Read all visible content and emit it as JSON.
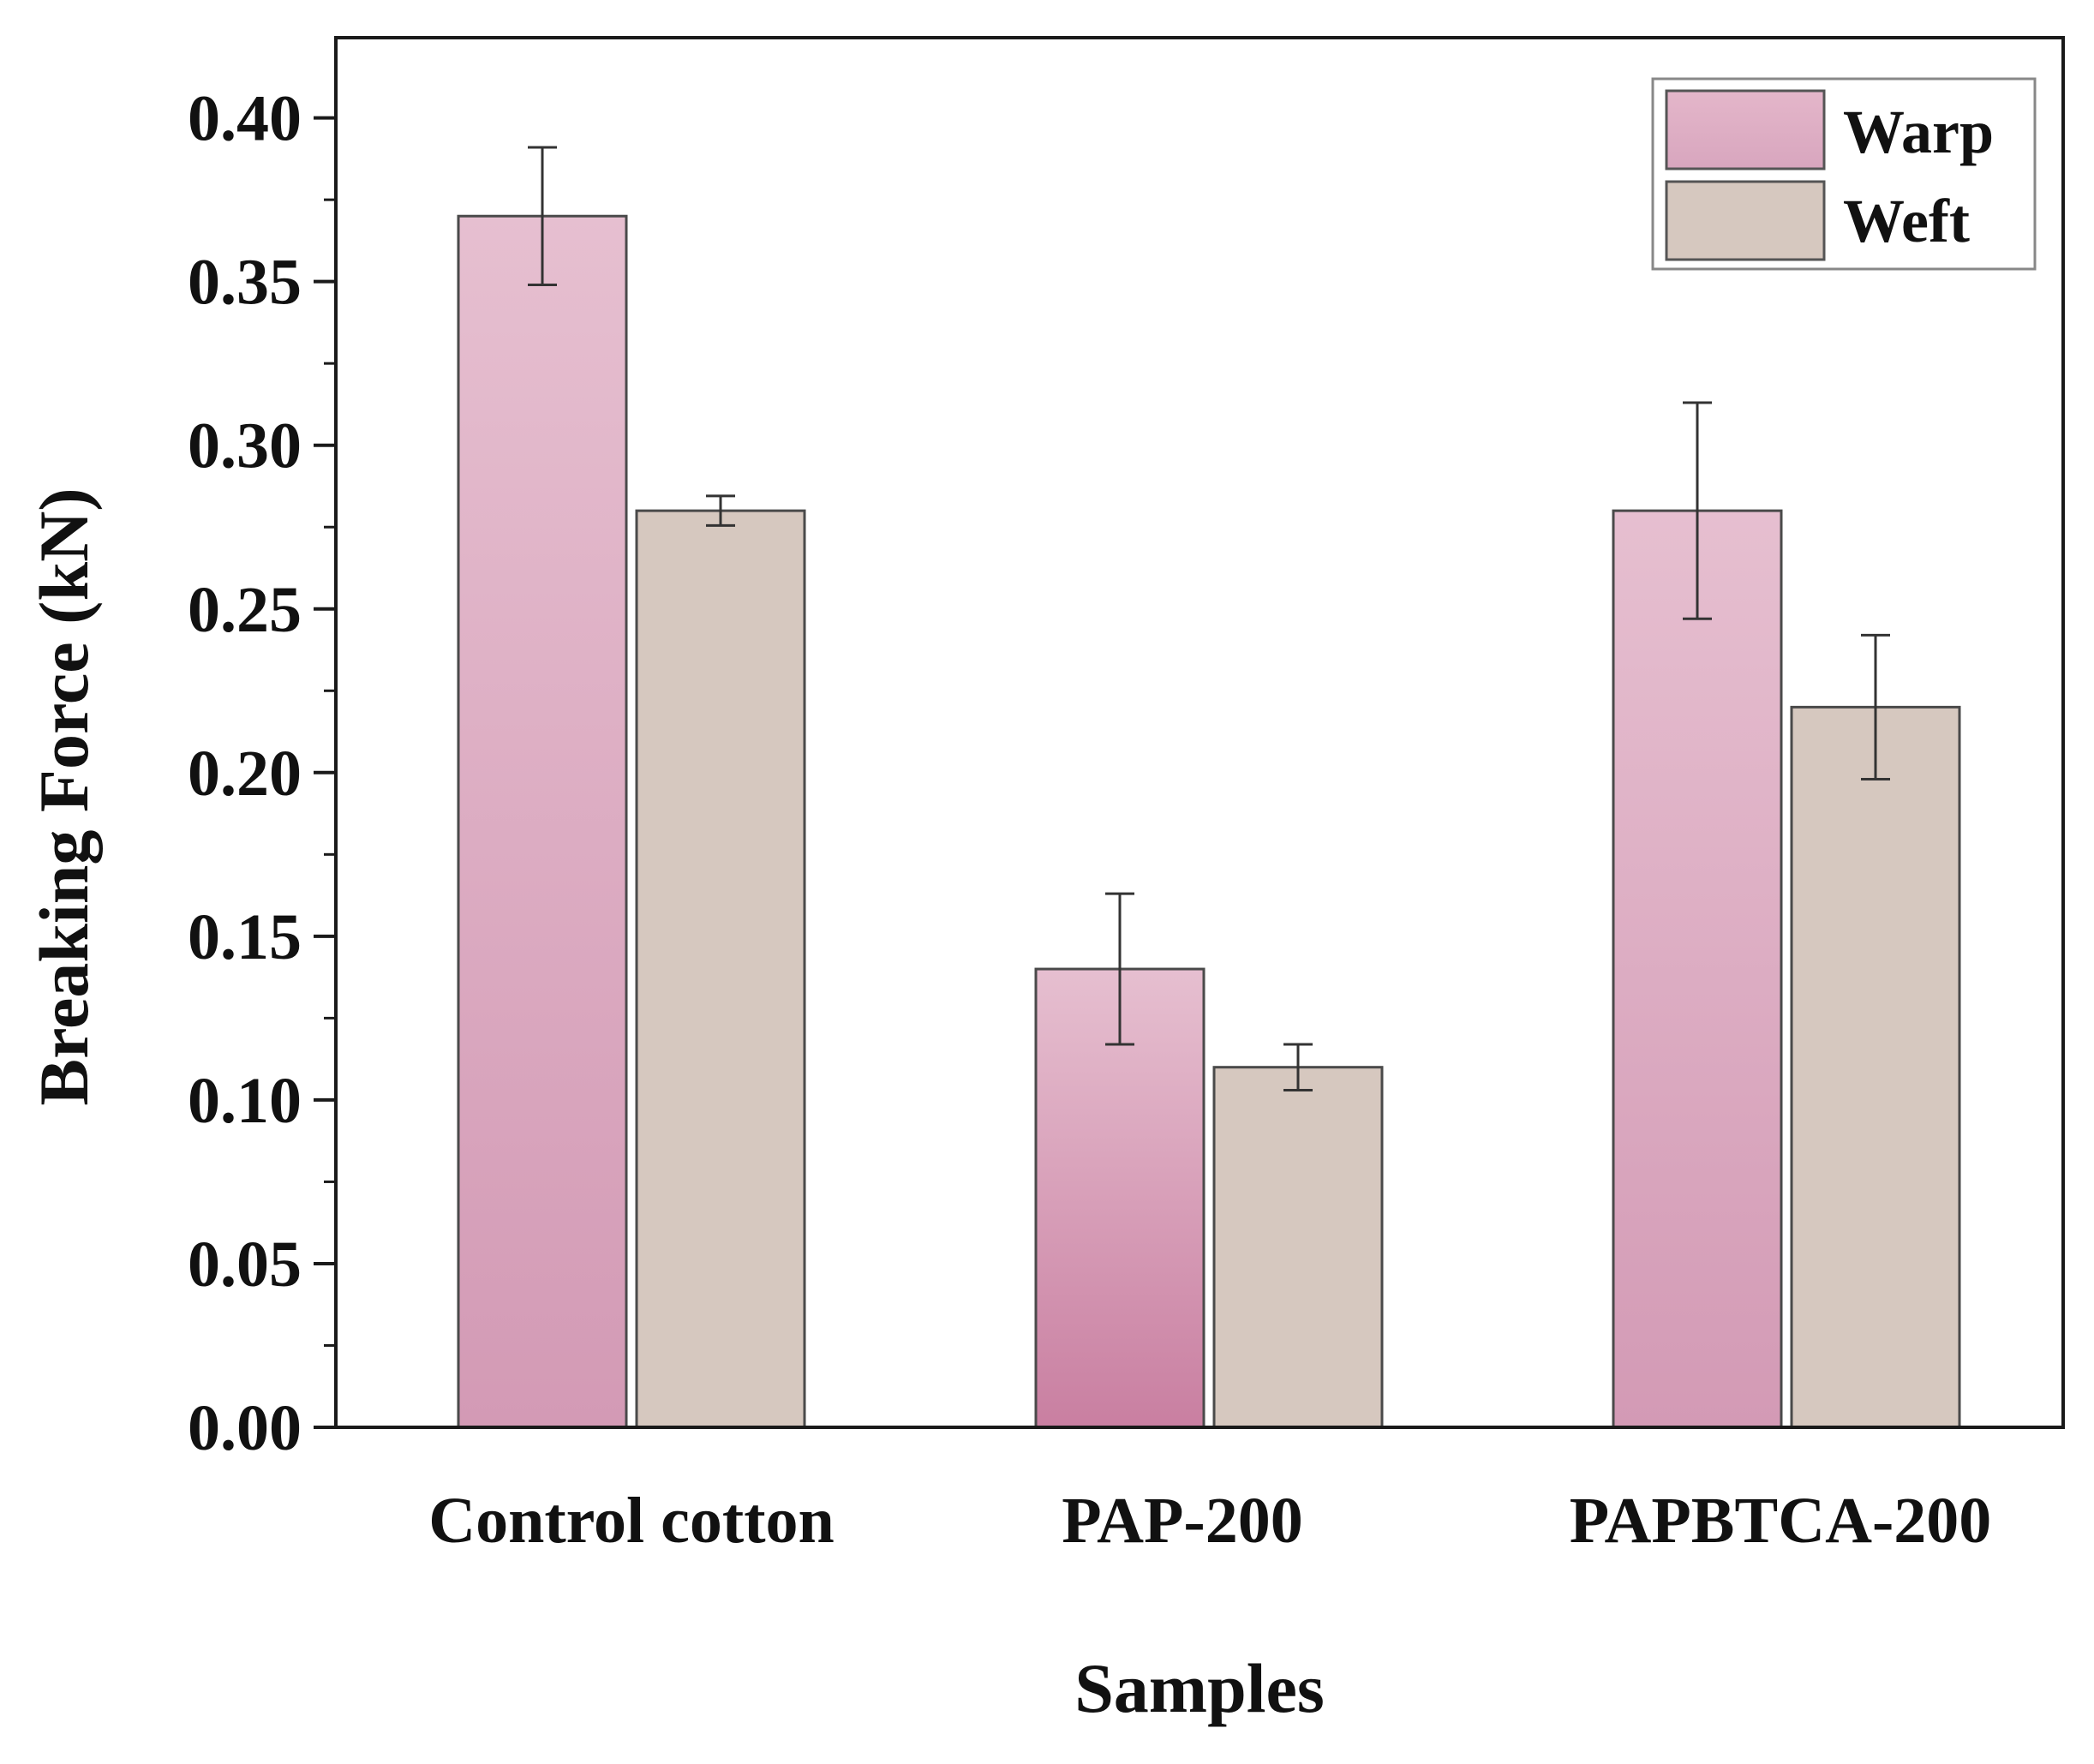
{
  "chart_data": {
    "type": "bar",
    "title": "",
    "xlabel": "Samples",
    "ylabel": "Breaking Force (kN)",
    "ylim": [
      0,
      0.4245
    ],
    "yticks": [
      "0.00",
      "0.05",
      "0.10",
      "0.15",
      "0.20",
      "0.25",
      "0.30",
      "0.35",
      "0.40"
    ],
    "ytick_values": [
      0,
      0.05,
      0.1,
      0.15,
      0.2,
      0.25,
      0.3,
      0.35,
      0.4
    ],
    "categories": [
      "Control cotton",
      "PAP-200",
      "PAPBTCA-200"
    ],
    "series": [
      {
        "name": "Warp",
        "values": [
          0.37,
          0.14,
          0.28
        ],
        "errors": [
          0.021,
          0.023,
          0.033
        ],
        "color_top": "#e4bacd",
        "color_bottom": "#d29bb5"
      },
      {
        "name": "Weft",
        "values": [
          0.28,
          0.11,
          0.22
        ],
        "errors": [
          0.0045,
          0.007,
          0.022
        ],
        "color_top": "#d6c8bf",
        "color_bottom": "#d6c8bf"
      }
    ],
    "legend_position": "top-right",
    "grid": false
  }
}
